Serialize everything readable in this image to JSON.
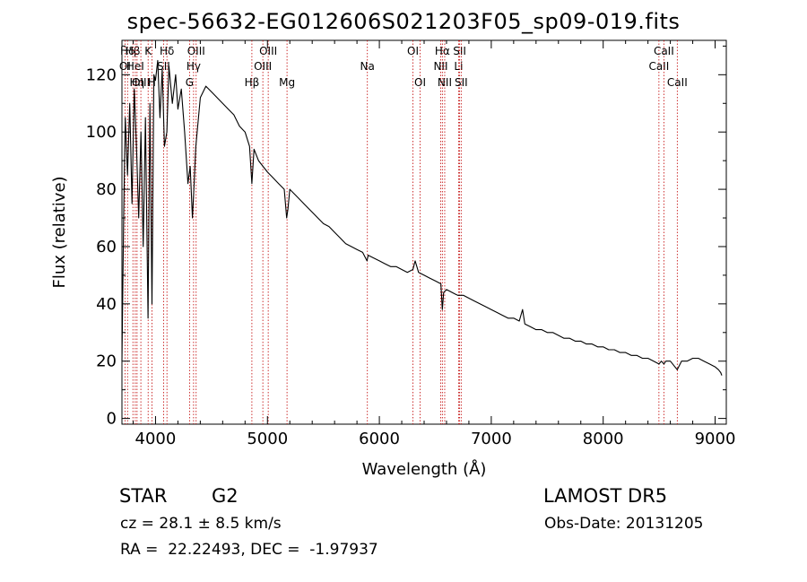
{
  "header": {
    "title": "spec-56632-EG012606S021203F05_sp09-019.fits"
  },
  "info": {
    "class_label": "STAR",
    "subclass_label": "G2",
    "cz_text": "cz = 28.1 ± 8.5 km/s",
    "radec_text": "RA =  22.22493, DEC =  -1.97937",
    "survey_text": "LAMOST DR5",
    "obs_date_text": "Obs-Date: 20131205"
  },
  "chart_data": {
    "type": "line",
    "title": "spec-56632-EG012606S021203F05_sp09-019.fits",
    "xlabel": "Wavelength (Å)",
    "ylabel": "Flux (relative)",
    "xlim": [
      3700,
      9100
    ],
    "ylim": [
      -2,
      132
    ],
    "x_ticks": [
      4000,
      5000,
      6000,
      7000,
      8000,
      9000
    ],
    "y_ticks": [
      0,
      20,
      40,
      60,
      80,
      100,
      120
    ],
    "line_color": "#000000",
    "marker_color": "#c00000",
    "grid": false,
    "series": [
      {
        "x": [
          3700,
          3715,
          3730,
          3750,
          3770,
          3790,
          3810,
          3830,
          3850,
          3870,
          3890,
          3910,
          3933,
          3950,
          3968,
          3985,
          4000,
          4020,
          4040,
          4060,
          4080,
          4101,
          4120,
          4150,
          4180,
          4200,
          4230,
          4260,
          4290,
          4310,
          4330,
          4340,
          4360,
          4400,
          4450,
          4500,
          4550,
          4600,
          4650,
          4700,
          4750,
          4800,
          4840,
          4861,
          4880,
          4920,
          4960,
          5000,
          5050,
          5100,
          5150,
          5172,
          5183,
          5200,
          5250,
          5300,
          5350,
          5400,
          5450,
          5500,
          5550,
          5600,
          5650,
          5700,
          5750,
          5800,
          5850,
          5890,
          5900,
          5950,
          6000,
          6050,
          6100,
          6150,
          6200,
          6250,
          6300,
          6320,
          6350,
          6400,
          6450,
          6500,
          6550,
          6563,
          6575,
          6600,
          6650,
          6700,
          6750,
          6800,
          6850,
          6900,
          6950,
          7000,
          7050,
          7100,
          7150,
          7200,
          7250,
          7280,
          7300,
          7350,
          7400,
          7450,
          7500,
          7550,
          7600,
          7650,
          7700,
          7750,
          7800,
          7850,
          7900,
          7950,
          8000,
          8050,
          8100,
          8150,
          8200,
          8250,
          8300,
          8350,
          8400,
          8450,
          8498,
          8520,
          8542,
          8560,
          8600,
          8662,
          8700,
          8750,
          8800,
          8850,
          8900,
          8950,
          9000,
          9030,
          9050,
          9060
        ],
        "y": [
          20,
          70,
          105,
          85,
          110,
          75,
          115,
          95,
          70,
          100,
          60,
          105,
          35,
          110,
          40,
          120,
          118,
          125,
          105,
          122,
          95,
          100,
          123,
          110,
          120,
          108,
          115,
          100,
          82,
          88,
          70,
          78,
          95,
          112,
          116,
          114,
          112,
          110,
          108,
          106,
          102,
          100,
          95,
          82,
          94,
          90,
          88,
          86,
          84,
          82,
          80,
          70,
          73,
          80,
          78,
          76,
          74,
          72,
          70,
          68,
          67,
          65,
          63,
          61,
          60,
          59,
          58,
          55,
          57,
          56,
          55,
          54,
          53,
          53,
          52,
          51,
          52,
          55,
          51,
          50,
          49,
          48,
          47,
          38,
          44,
          45,
          44,
          43,
          43,
          42,
          41,
          40,
          39,
          38,
          37,
          36,
          35,
          35,
          34,
          38,
          33,
          32,
          31,
          31,
          30,
          30,
          29,
          28,
          28,
          27,
          27,
          26,
          26,
          25,
          25,
          24,
          24,
          23,
          23,
          22,
          22,
          21,
          21,
          20,
          19,
          20,
          19,
          20,
          20,
          17,
          20,
          20,
          21,
          21,
          20,
          19,
          18,
          17,
          16,
          15
        ]
      }
    ],
    "line_markers": [
      {
        "label": "OI",
        "wavelength": 3727,
        "level": 2
      },
      {
        "label": "Hδ",
        "wavelength": 3750,
        "level": 1
      },
      {
        "label": "Hβ",
        "wavelength": 3798,
        "level": 1
      },
      {
        "label": "HeI",
        "wavelength": 3819,
        "level": 2
      },
      {
        "label": "Hη",
        "wavelength": 3835,
        "level": 3
      },
      {
        "label": "OIII",
        "wavelength": 3869,
        "level": 3
      },
      {
        "label": "K",
        "wavelength": 3934,
        "level": 1
      },
      {
        "label": "H",
        "wavelength": 3968,
        "level": 3
      },
      {
        "label": "SII",
        "wavelength": 4072,
        "level": 2
      },
      {
        "label": "Hδ",
        "wavelength": 4102,
        "level": 1
      },
      {
        "label": "G",
        "wavelength": 4304,
        "level": 3
      },
      {
        "label": "Hγ",
        "wavelength": 4340,
        "level": 2
      },
      {
        "label": "OIII",
        "wavelength": 4363,
        "level": 1
      },
      {
        "label": "Hβ",
        "wavelength": 4861,
        "level": 3
      },
      {
        "label": "OIII",
        "wavelength": 4959,
        "level": 2
      },
      {
        "label": "OIII",
        "wavelength": 5007,
        "level": 1
      },
      {
        "label": "Mg",
        "wavelength": 5175,
        "level": 3
      },
      {
        "label": "Na",
        "wavelength": 5893,
        "level": 2
      },
      {
        "label": "OI",
        "wavelength": 6300,
        "level": 1
      },
      {
        "label": "OI",
        "wavelength": 6364,
        "level": 3
      },
      {
        "label": "NII",
        "wavelength": 6548,
        "level": 2
      },
      {
        "label": "Hα",
        "wavelength": 6563,
        "level": 1
      },
      {
        "label": "NII",
        "wavelength": 6584,
        "level": 3
      },
      {
        "label": "Li",
        "wavelength": 6708,
        "level": 2
      },
      {
        "label": "SII",
        "wavelength": 6717,
        "level": 1
      },
      {
        "label": "SII",
        "wavelength": 6731,
        "level": 3
      },
      {
        "label": "CaII",
        "wavelength": 8498,
        "level": 2
      },
      {
        "label": "CaII",
        "wavelength": 8542,
        "level": 1
      },
      {
        "label": "CaII",
        "wavelength": 8662,
        "level": 3
      }
    ]
  }
}
